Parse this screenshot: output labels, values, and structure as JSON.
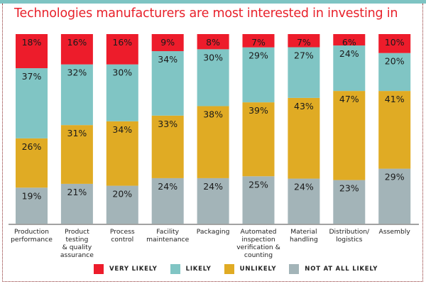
{
  "chart_data": {
    "type": "bar",
    "stacked": true,
    "title": "Technologies manufacturers are most interested in investing in",
    "xlabel": "",
    "ylabel": "",
    "ylim": [
      0,
      100
    ],
    "grid": false,
    "legend_position": "bottom",
    "categories": [
      "Production performance",
      "Product testing & quality assurance",
      "Process control",
      "Facility maintenance",
      "Packaging",
      "Automated inspection verification & counting",
      "Material handling",
      "Distribution/ logistics",
      "Assembly"
    ],
    "category_lines": [
      [
        "Production",
        "performance"
      ],
      [
        "Product",
        "testing",
        "& quality",
        "assurance"
      ],
      [
        "Process",
        "control"
      ],
      [
        "Facility",
        "maintenance"
      ],
      [
        "Packaging"
      ],
      [
        "Automated",
        "inspection",
        "verification &",
        "counting"
      ],
      [
        "Material",
        "handling"
      ],
      [
        "Distribution/",
        "logistics"
      ],
      [
        "Assembly"
      ]
    ],
    "series": [
      {
        "name": "NOT AT ALL LIKELY",
        "color": "#a3b4b8",
        "values": [
          19,
          21,
          20,
          24,
          24,
          25,
          24,
          23,
          29
        ]
      },
      {
        "name": "UNLIKELY",
        "color": "#e0ab24",
        "values": [
          26,
          31,
          34,
          33,
          38,
          39,
          43,
          47,
          41
        ]
      },
      {
        "name": "LIKELY",
        "color": "#80c5c4",
        "values": [
          37,
          32,
          30,
          34,
          30,
          29,
          27,
          24,
          20
        ]
      },
      {
        "name": "VERY LIKELY",
        "color": "#ed1c2b",
        "values": [
          18,
          16,
          16,
          9,
          8,
          7,
          7,
          6,
          10
        ]
      }
    ],
    "legend": [
      {
        "name": "VERY LIKELY",
        "color": "#ed1c2b"
      },
      {
        "name": "LIKELY",
        "color": "#80c5c4"
      },
      {
        "name": "UNLIKELY",
        "color": "#e0ab24"
      },
      {
        "name": "NOT AT ALL LIKELY",
        "color": "#a3b4b8"
      }
    ],
    "value_suffix": "%"
  },
  "colors": {
    "title": "#e8202a",
    "top_rule": "#7ec4c3",
    "axis": "#444444"
  }
}
